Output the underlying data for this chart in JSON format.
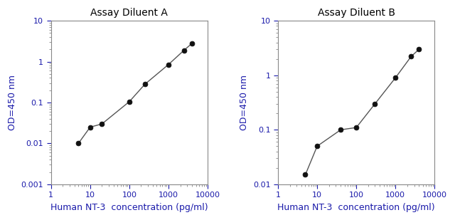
{
  "chart_a": {
    "title": "Assay Diluent A",
    "x": [
      5,
      10,
      20,
      100,
      250,
      1000,
      2500,
      4000
    ],
    "y": [
      0.01,
      0.025,
      0.03,
      0.105,
      0.28,
      0.85,
      1.9,
      2.8
    ],
    "xlim": [
      1,
      10000
    ],
    "ylim": [
      0.001,
      10
    ]
  },
  "chart_b": {
    "title": "Assay Diluent B",
    "x": [
      5,
      10,
      40,
      100,
      300,
      1000,
      2500,
      4000
    ],
    "y": [
      0.015,
      0.05,
      0.1,
      0.11,
      0.3,
      0.9,
      2.2,
      3.0
    ],
    "xlim": [
      1,
      10000
    ],
    "ylim": [
      0.01,
      10
    ]
  },
  "xlabel": "Human NT-3  concentration (pg/ml)",
  "ylabel": "OD=450 nm",
  "title_color": "#000000",
  "label_color": "#1a1aaa",
  "tick_label_color": "#1a1aaa",
  "line_color": "#555555",
  "marker_color": "#111111",
  "bg_color": "#ffffff",
  "title_fontsize": 10,
  "label_fontsize": 9,
  "tick_fontsize": 8
}
